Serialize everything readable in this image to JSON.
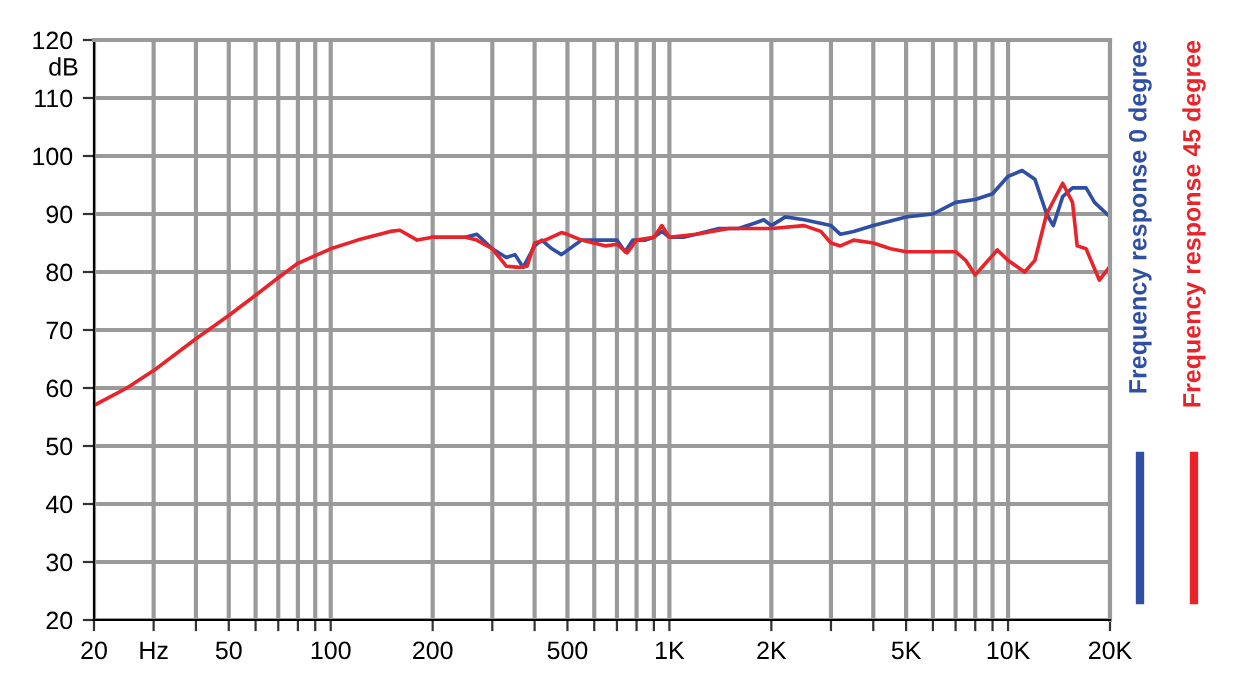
{
  "chart_data": {
    "type": "line",
    "ylabel": "dB",
    "log": "x",
    "grid": true,
    "legend": "right",
    "marker": "none",
    "line_style": "solid",
    "xlim": [
      20,
      20000
    ],
    "ylim": [
      20,
      120
    ],
    "xticks": [
      20,
      {
        "value": 30,
        "label": "Hz"
      },
      {
        "value": 40,
        "label": null
      },
      50,
      {
        "value": 60,
        "label": null
      },
      {
        "value": 70,
        "label": null
      },
      {
        "value": 80,
        "label": null
      },
      {
        "value": 90,
        "label": null
      },
      100,
      200,
      {
        "value": 300,
        "label": null
      },
      {
        "value": 400,
        "label": null
      },
      500,
      {
        "value": 600,
        "label": null
      },
      {
        "value": 700,
        "label": null
      },
      {
        "value": 800,
        "label": null
      },
      {
        "value": 900,
        "label": null
      },
      {
        "value": 1000,
        "label": "1K"
      },
      {
        "value": 2000,
        "label": "2K"
      },
      {
        "value": 3000,
        "label": null
      },
      {
        "value": 4000,
        "label": null
      },
      {
        "value": 5000,
        "label": "5K"
      },
      {
        "value": 6000,
        "label": null
      },
      {
        "value": 7000,
        "label": null
      },
      {
        "value": 8000,
        "label": null
      },
      {
        "value": 9000,
        "label": null
      },
      {
        "value": 10000,
        "label": "10K"
      },
      {
        "value": 20000,
        "label": "20K"
      }
    ],
    "yticks": [
      20,
      30,
      40,
      50,
      60,
      70,
      80,
      90,
      100,
      110,
      120
    ],
    "series": [
      {
        "name": "Frequency response 0 degree",
        "color": "#2e4fa3",
        "x": [
          200,
          250,
          270,
          300,
          330,
          350,
          370,
          400,
          420,
          450,
          480,
          550,
          600,
          700,
          740,
          780,
          850,
          900,
          950,
          1000,
          1100,
          1200,
          1400,
          1600,
          1800,
          1900,
          2000,
          2200,
          2500,
          3000,
          3200,
          3500,
          4000,
          5000,
          6000,
          7000,
          8000,
          9000,
          10000,
          11000,
          12000,
          13000,
          13600,
          14500,
          15500,
          17000,
          18000,
          20000
        ],
        "values": [
          86,
          86,
          86.5,
          84,
          82.5,
          83,
          80.8,
          84.5,
          85.5,
          84,
          83,
          85.5,
          85.5,
          85.5,
          83.5,
          85.5,
          85.5,
          86,
          87,
          86,
          86,
          86.5,
          87.5,
          87.5,
          88.5,
          89,
          88,
          89.5,
          89,
          88,
          86.5,
          87,
          88,
          89.5,
          90,
          92,
          92.5,
          93.5,
          96.5,
          97.5,
          96,
          90,
          88,
          93,
          94.5,
          94.5,
          92,
          89.5
        ]
      },
      {
        "name": "Frequency response 45 degree",
        "color": "#e8232a",
        "x": [
          20,
          25,
          30,
          40,
          50,
          60,
          70,
          80,
          100,
          120,
          150,
          160,
          180,
          200,
          250,
          270,
          300,
          330,
          360,
          380,
          400,
          430,
          480,
          500,
          550,
          650,
          700,
          750,
          800,
          900,
          950,
          1000,
          1200,
          1500,
          2000,
          2500,
          2800,
          3000,
          3200,
          3500,
          4000,
          4500,
          5000,
          7000,
          7500,
          8000,
          9300,
          10000,
          11200,
          12000,
          13000,
          14500,
          15500,
          16000,
          17000,
          18600,
          20000
        ],
        "values": [
          57,
          60,
          63,
          68.5,
          72.5,
          76,
          79,
          81.5,
          84,
          85.5,
          87,
          87.2,
          85.5,
          86,
          86,
          85.5,
          84,
          81,
          80.8,
          81,
          85,
          85.5,
          86.8,
          86.5,
          85.5,
          84.5,
          84.8,
          83.3,
          85.5,
          86,
          88,
          86,
          86.5,
          87.5,
          87.5,
          88,
          87,
          85,
          84.5,
          85.5,
          85,
          84,
          83.5,
          83.5,
          82,
          79.5,
          83.8,
          82,
          80,
          82,
          90,
          95.3,
          92,
          84.5,
          84,
          78.6,
          81
        ]
      }
    ]
  }
}
